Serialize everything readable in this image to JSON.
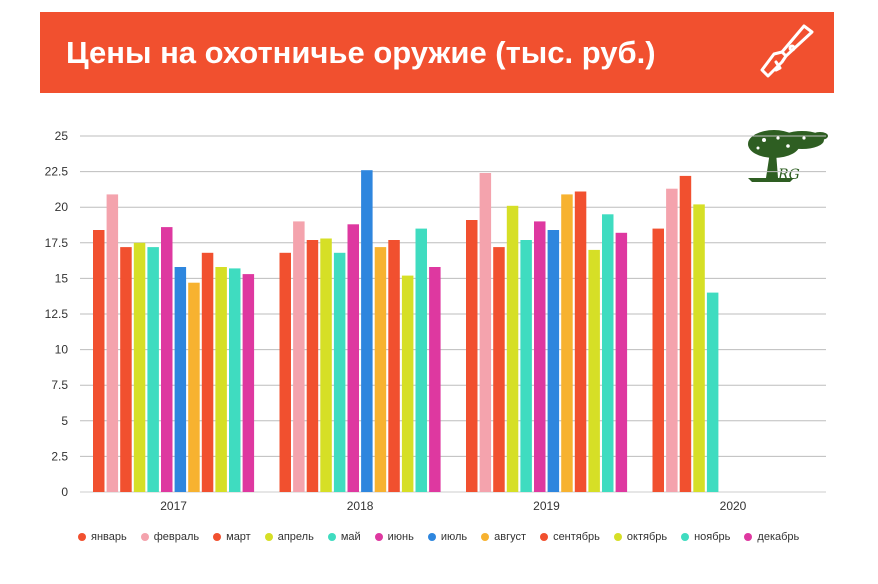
{
  "header": {
    "title": "Цены на охотничье оружие (тыс. руб.)"
  },
  "logo": {
    "text": "ARG"
  },
  "chart_data": {
    "type": "bar",
    "title": "Цены на охотничье оружие (тыс. руб.)",
    "xlabel": "",
    "ylabel": "",
    "categories": [
      "2017",
      "2018",
      "2019",
      "2020"
    ],
    "ylim": [
      0,
      25
    ],
    "yticks": [
      "0",
      "2.5",
      "5",
      "7.5",
      "10",
      "12.5",
      "15",
      "17.5",
      "20",
      "22.5",
      "25"
    ],
    "grid": true,
    "legend_position": "bottom",
    "series": [
      {
        "name": "январь",
        "color": "#f1502f",
        "values": [
          18.4,
          16.8,
          19.1,
          18.5
        ]
      },
      {
        "name": "февраль",
        "color": "#f4a3ad",
        "values": [
          20.9,
          19.0,
          22.4,
          21.3
        ]
      },
      {
        "name": "март",
        "color": "#f1502f",
        "values": [
          17.2,
          17.7,
          17.2,
          22.2
        ]
      },
      {
        "name": "апрель",
        "color": "#d6df26",
        "values": [
          17.5,
          17.8,
          20.1,
          20.2
        ]
      },
      {
        "name": "май",
        "color": "#3fdcc0",
        "values": [
          17.2,
          16.8,
          17.7,
          14.0
        ]
      },
      {
        "name": "июнь",
        "color": "#de38a0",
        "values": [
          18.6,
          18.8,
          19.0,
          null
        ]
      },
      {
        "name": "июль",
        "color": "#2e86de",
        "values": [
          15.8,
          22.6,
          18.4,
          null
        ]
      },
      {
        "name": "август",
        "color": "#f7b230",
        "values": [
          14.7,
          17.2,
          20.9,
          null
        ]
      },
      {
        "name": "сентябрь",
        "color": "#f1502f",
        "values": [
          16.8,
          17.7,
          21.1,
          null
        ]
      },
      {
        "name": "октябрь",
        "color": "#d6df26",
        "values": [
          15.8,
          15.2,
          17.0,
          null
        ]
      },
      {
        "name": "ноябрь",
        "color": "#3fdcc0",
        "values": [
          15.7,
          18.5,
          19.5,
          null
        ]
      },
      {
        "name": "декабрь",
        "color": "#de38a0",
        "values": [
          15.3,
          15.8,
          18.2,
          null
        ]
      }
    ]
  }
}
